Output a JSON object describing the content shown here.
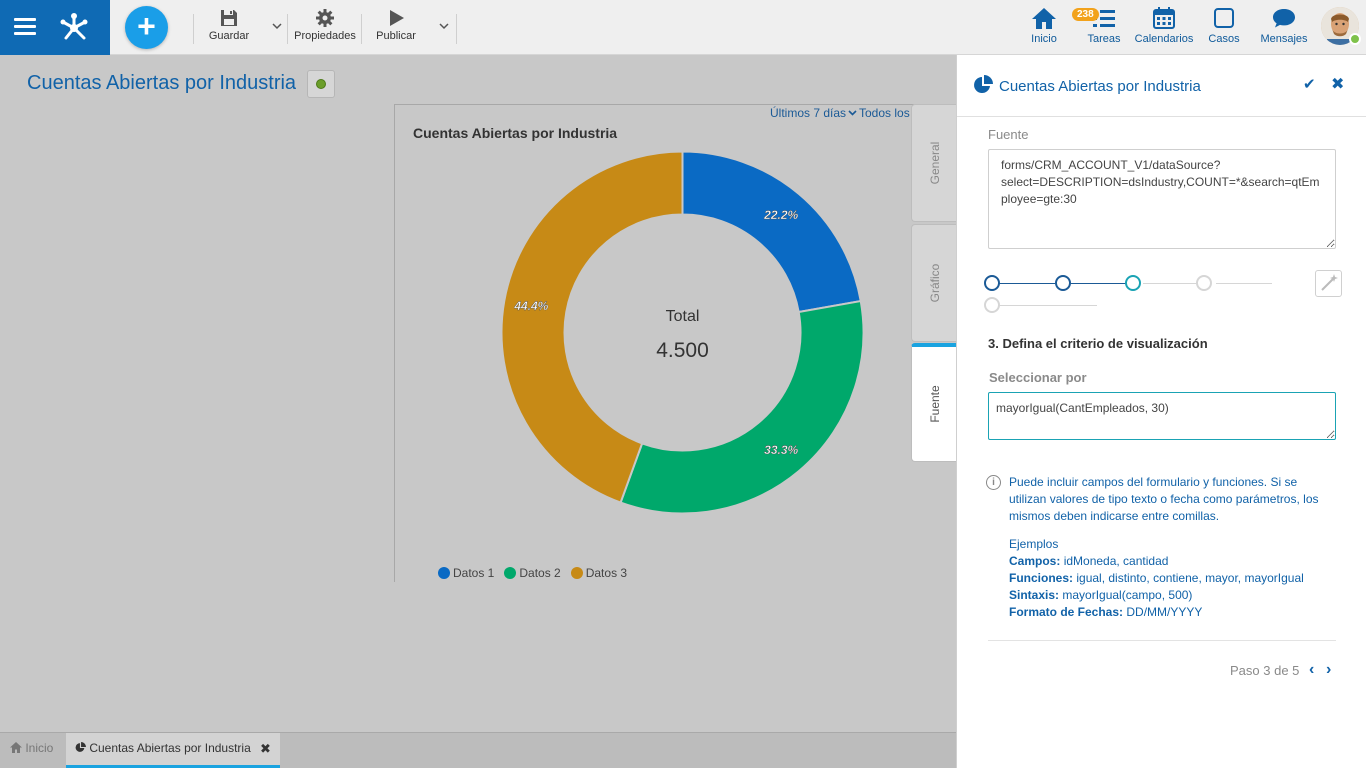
{
  "toolbar": {
    "save_label": "Guardar",
    "properties_label": "Propiedades",
    "publish_label": "Publicar"
  },
  "nav": {
    "home_label": "Inicio",
    "tasks_label": "Tareas",
    "tasks_count": "238",
    "calendars_label": "Calendarios",
    "cases_label": "Casos",
    "messages_label": "Mensajes"
  },
  "page": {
    "title": "Cuentas Abiertas por Industria"
  },
  "chart_filters": {
    "range": "Últimos 7 días",
    "scope": "Todos los"
  },
  "chart_data": {
    "type": "pie",
    "title": "Cuentas Abiertas por Industria",
    "categories": [
      "Datos 1",
      "Datos 2",
      "Datos 3"
    ],
    "values": [
      22.2,
      33.3,
      44.4
    ],
    "labels": [
      "22.2%",
      "33.3%",
      "44.4%"
    ],
    "colors": [
      "#0a6ac4",
      "#00a86b",
      "#c78a16"
    ],
    "center_label": "Total",
    "center_value": "4.500",
    "legend_position": "bottom"
  },
  "side_tabs": {
    "general": "General",
    "chart": "Gráfico",
    "source": "Fuente"
  },
  "panel": {
    "title": "Cuentas Abiertas por Industria",
    "source_label": "Fuente",
    "source_value": "forms/CRM_ACCOUNT_V1/dataSource?select=DESCRIPTION=dsIndustry,COUNT=*&search=qtEmployee=gte:30",
    "step_heading": "3. Defina el criterio de visualización",
    "select_label": "Seleccionar por",
    "select_value": "mayorIgual(CantEmpleados, 30)",
    "info_text": "Puede incluir campos del formulario y funciones. Si se utilizan valores de tipo texto o fecha como parámetros, los mismos deben indicarse entre comillas.",
    "examples_title": "Ejemplos",
    "fields_label": "Campos:",
    "fields_value": "idMoneda, cantidad",
    "functions_label": "Funciones:",
    "functions_value": "igual, distinto, contiene, mayor, mayorIgual",
    "syntax_label": "Sintaxis:",
    "syntax_value": "mayorIgual(campo, 500)",
    "dates_label": "Formato de Fechas:",
    "dates_value": "DD/MM/YYYY",
    "pager": "Paso 3 de 5"
  },
  "bottom_tabs": {
    "home": "Inicio",
    "doc": "Cuentas Abiertas por Industria"
  }
}
